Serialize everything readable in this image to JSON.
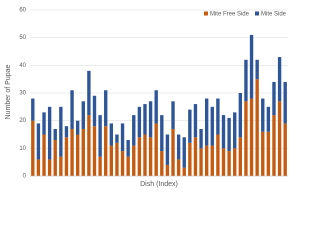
{
  "chart_data": {
    "type": "stacked-bar",
    "y_label": "Number of Pupae",
    "x_label": "Dish (Index)",
    "ylim": [
      0,
      60
    ],
    "yticks": [
      0,
      10,
      20,
      30,
      40,
      50,
      60
    ],
    "grid": true,
    "legend": "top-right",
    "series": [
      {
        "name": "Mite Free Side",
        "color": "#c55a11",
        "values": [
          20,
          6,
          15,
          6,
          13,
          7,
          14,
          17,
          15,
          17,
          22,
          18,
          7,
          18,
          11,
          12,
          9,
          7,
          11,
          14,
          15,
          14,
          19,
          9,
          4,
          17,
          6,
          3,
          12,
          14,
          10,
          11,
          11,
          15,
          10,
          9,
          10,
          14,
          27,
          28,
          35,
          16,
          16,
          22,
          27,
          19
        ]
      },
      {
        "name": "Mite Side",
        "color": "#2e5597",
        "values": [
          8,
          13,
          8,
          19,
          4,
          18,
          4,
          14,
          5,
          10,
          16,
          11,
          15,
          13,
          8,
          3,
          10,
          6,
          11,
          11,
          11,
          13,
          12,
          13,
          11,
          10,
          9,
          11,
          12,
          12,
          7,
          17,
          14,
          13,
          12,
          12,
          13,
          16,
          15,
          23,
          7,
          12,
          9,
          12,
          16,
          15
        ]
      }
    ]
  }
}
